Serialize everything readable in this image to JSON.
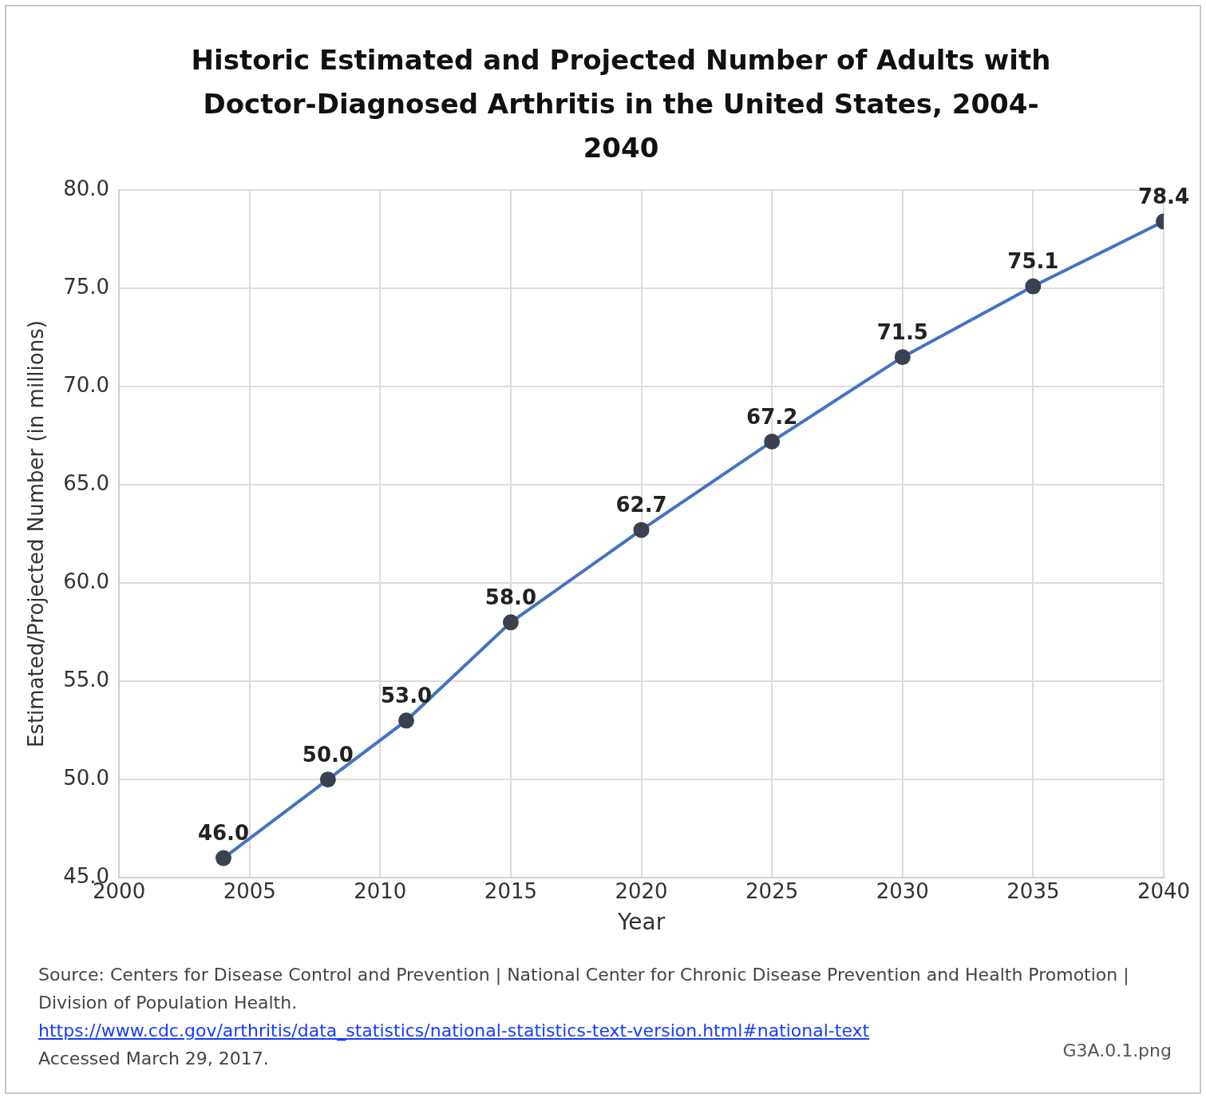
{
  "chart_data": {
    "type": "line",
    "title": "Historic Estimated and Projected Number of Adults with Doctor-Diagnosed Arthritis in the United States, 2004-2040",
    "xlabel": "Year",
    "ylabel": "Estimated/Projected Number (in millions)",
    "x": [
      2004,
      2008,
      2011,
      2015,
      2020,
      2025,
      2030,
      2035,
      2040
    ],
    "series": [
      {
        "color": "#4472c4",
        "values": [
          46.0,
          50.0,
          53.0,
          58.0,
          62.7,
          67.2,
          71.5,
          75.1,
          78.4
        ],
        "value_labels": [
          "46.0",
          "50.0",
          "53.0",
          "58.0",
          "62.7",
          "67.2",
          "71.5",
          "75.1",
          "78.4"
        ]
      }
    ],
    "xlim": [
      2000,
      2040
    ],
    "xticks": [
      2000,
      2005,
      2010,
      2015,
      2020,
      2025,
      2030,
      2035,
      2040
    ],
    "ylim": [
      45,
      80
    ],
    "yticks": [
      {
        "value": 45,
        "label": "45.0"
      },
      {
        "value": 50,
        "label": "50.0"
      },
      {
        "value": 55,
        "label": "55.0"
      },
      {
        "value": 60,
        "label": "60.0"
      },
      {
        "value": 65,
        "label": "65.0"
      },
      {
        "value": 70,
        "label": "70.0"
      },
      {
        "value": 75,
        "label": "75.0"
      },
      {
        "value": 80,
        "label": "80.0"
      }
    ],
    "grid": true,
    "marker": "circle",
    "legend": false,
    "annotations": [
      "Source: Centers for Disease Control and Prevention | National Center for Chronic Disease Prevention and Health Promotion | Division of Population Health.",
      "https://www.cdc.gov/arthritis/data_statistics/national-statistics-text-version.html#national-text",
      "Accessed March 29, 2017.",
      "G3A.0.1.png"
    ]
  }
}
